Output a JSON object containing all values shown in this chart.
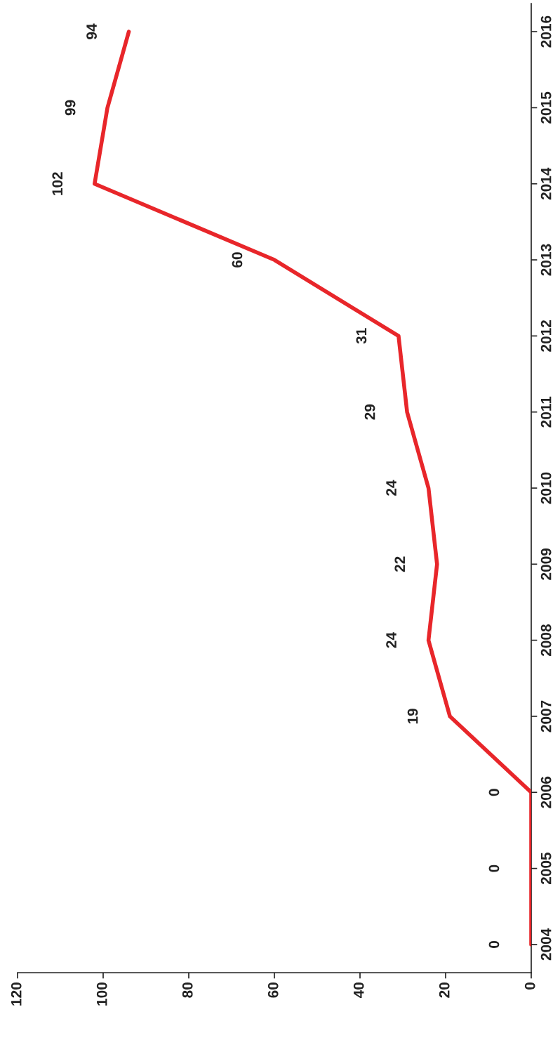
{
  "chart_data": {
    "type": "line",
    "categories": [
      "2016",
      "2015",
      "2014",
      "2013",
      "2012",
      "2011",
      "2010",
      "2009",
      "2008",
      "2007",
      "2006",
      "2005",
      "2004"
    ],
    "series": [
      {
        "color": "#e8262a",
        "values": [
          94,
          99,
          102,
          60,
          31,
          29,
          24,
          22,
          24,
          19,
          0,
          0,
          0
        ]
      }
    ],
    "orientation": "horizontal",
    "xlim": [
      120,
      0
    ],
    "xticks": [
      0,
      20,
      40,
      60,
      80,
      100,
      120
    ],
    "data_labels": true,
    "grid": false,
    "legend": false,
    "marker": "none",
    "line_style": "solid"
  }
}
